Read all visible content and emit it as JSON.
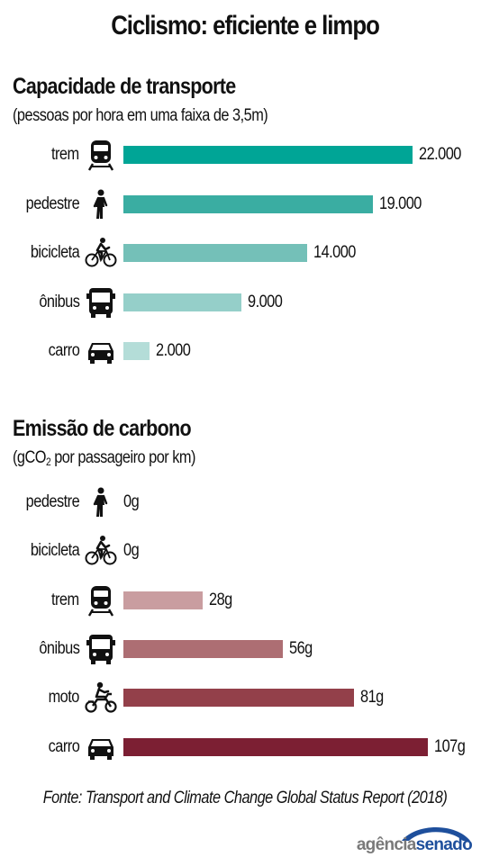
{
  "title": "Ciclismo: eficiente e limpo",
  "source": "Fonte: Transport and Climate Change Global Status Report (2018)",
  "logo": {
    "part1": "agência",
    "part2": "senado"
  },
  "chart_data": [
    {
      "type": "bar",
      "orientation": "horizontal",
      "title": "Capacidade de transporte",
      "subtitle": "(pessoas por hora em uma faixa de 3,5m)",
      "categories": [
        "trem",
        "pedestre",
        "bicicleta",
        "ônibus",
        "carro"
      ],
      "icons": [
        "train-icon",
        "pedestrian-icon",
        "bicycle-icon",
        "bus-icon",
        "car-icon"
      ],
      "values": [
        22000,
        19000,
        14000,
        9000,
        2000
      ],
      "value_labels": [
        "22.000",
        "19.000",
        "14.000",
        "9.000",
        "2.000"
      ],
      "colors": [
        "#00a596",
        "#3aada2",
        "#74c0b8",
        "#95cfc9",
        "#b4ddd8"
      ],
      "xlim": [
        0,
        22000
      ]
    },
    {
      "type": "bar",
      "orientation": "horizontal",
      "title": "Emissão de carbono",
      "subtitle_parts": [
        "(gCO",
        "2",
        " por passageiro por km)"
      ],
      "categories": [
        "pedestre",
        "bicicleta",
        "trem",
        "ônibus",
        "moto",
        "carro"
      ],
      "icons": [
        "pedestrian-icon",
        "bicycle-icon",
        "train-icon",
        "bus-icon",
        "motorcycle-icon",
        "car-icon"
      ],
      "values": [
        0,
        0,
        28,
        56,
        81,
        107
      ],
      "value_labels": [
        "0g",
        "0g",
        "28g",
        "56g",
        "81g",
        "107g"
      ],
      "colors": [
        "#c99da0",
        "#c99da0",
        "#c99da0",
        "#ad6e73",
        "#93404a",
        "#7c1f33"
      ],
      "xlim": [
        0,
        107
      ]
    }
  ]
}
